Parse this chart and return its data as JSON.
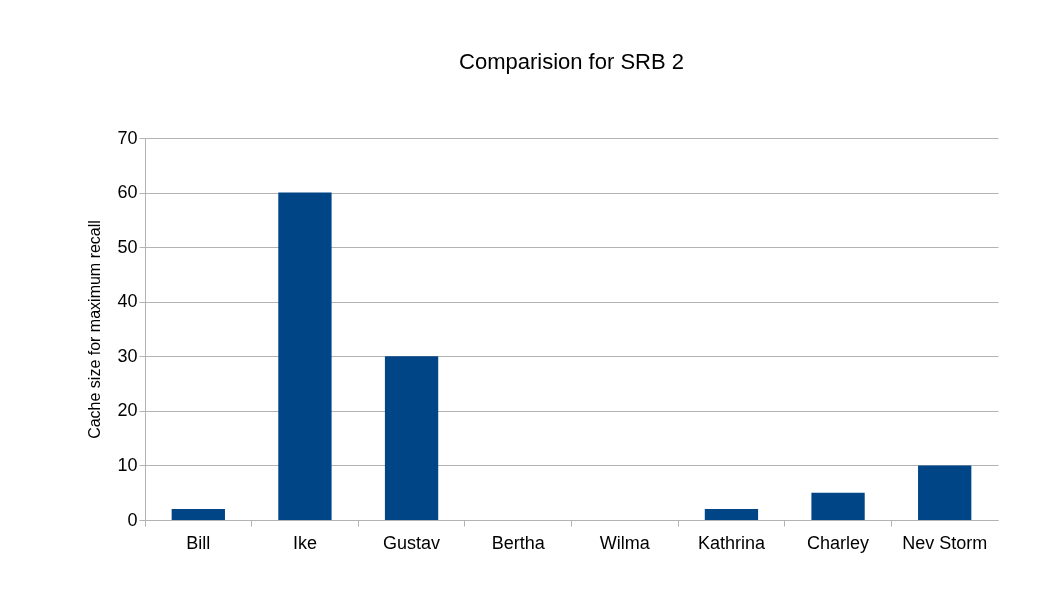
{
  "chart_data": {
    "type": "bar",
    "title": "Comparision for SRB 2",
    "ylabel": "Cache size for maximum recall",
    "categories": [
      "Bill",
      "Ike",
      "Gustav",
      "Bertha",
      "Wilma",
      "Kathrina",
      "Charley",
      "Nev Storm"
    ],
    "values": [
      2,
      60,
      30,
      0,
      0,
      2,
      5,
      10
    ],
    "color": "#004586",
    "ylim": [
      0,
      70
    ],
    "yticks": [
      0,
      10,
      20,
      30,
      40,
      50,
      60,
      70
    ],
    "grid": "y",
    "legend": false
  }
}
